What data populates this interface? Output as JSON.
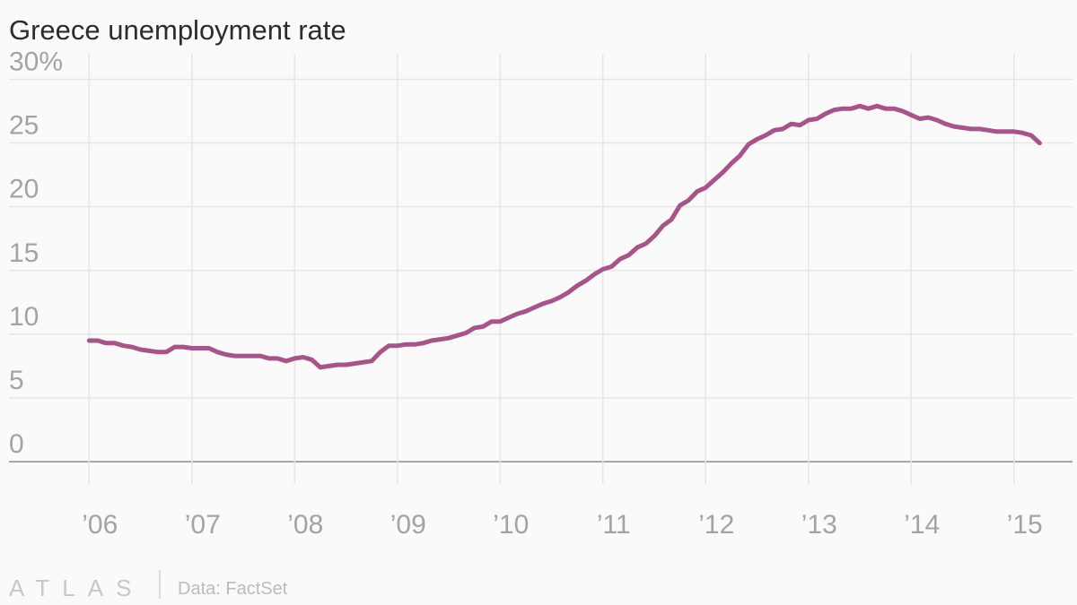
{
  "chart_data": {
    "type": "line",
    "title": "Greece unemployment rate",
    "source": "Data: FactSet",
    "brand": "ATLAS",
    "x": [
      2006,
      2006.083,
      2006.167,
      2006.25,
      2006.333,
      2006.417,
      2006.5,
      2006.583,
      2006.667,
      2006.75,
      2006.833,
      2006.917,
      2007,
      2007.083,
      2007.167,
      2007.25,
      2007.333,
      2007.417,
      2007.5,
      2007.583,
      2007.667,
      2007.75,
      2007.833,
      2007.917,
      2008,
      2008.083,
      2008.167,
      2008.25,
      2008.333,
      2008.417,
      2008.5,
      2008.583,
      2008.667,
      2008.75,
      2008.833,
      2008.917,
      2009,
      2009.083,
      2009.167,
      2009.25,
      2009.333,
      2009.417,
      2009.5,
      2009.583,
      2009.667,
      2009.75,
      2009.833,
      2009.917,
      2010,
      2010.083,
      2010.167,
      2010.25,
      2010.333,
      2010.417,
      2010.5,
      2010.583,
      2010.667,
      2010.75,
      2010.833,
      2010.917,
      2011,
      2011.083,
      2011.167,
      2011.25,
      2011.333,
      2011.417,
      2011.5,
      2011.583,
      2011.667,
      2011.75,
      2011.833,
      2011.917,
      2012,
      2012.083,
      2012.167,
      2012.25,
      2012.333,
      2012.417,
      2012.5,
      2012.583,
      2012.667,
      2012.75,
      2012.833,
      2012.917,
      2013,
      2013.083,
      2013.167,
      2013.25,
      2013.333,
      2013.417,
      2013.5,
      2013.583,
      2013.667,
      2013.75,
      2013.833,
      2013.917,
      2014,
      2014.083,
      2014.167,
      2014.25,
      2014.333,
      2014.417,
      2014.5,
      2014.583,
      2014.667,
      2014.75,
      2014.833,
      2014.917,
      2015,
      2015.083,
      2015.167,
      2015.25
    ],
    "series": [
      {
        "name": "Unemployment rate",
        "color": "#a8538a",
        "values": [
          9.5,
          9.5,
          9.3,
          9.3,
          9.1,
          9.0,
          8.8,
          8.7,
          8.6,
          8.6,
          9.0,
          9.0,
          8.9,
          8.9,
          8.9,
          8.6,
          8.4,
          8.3,
          8.3,
          8.3,
          8.3,
          8.1,
          8.1,
          7.9,
          8.1,
          8.2,
          8.0,
          7.4,
          7.5,
          7.6,
          7.6,
          7.7,
          7.8,
          7.9,
          8.6,
          9.1,
          9.1,
          9.2,
          9.2,
          9.3,
          9.5,
          9.6,
          9.7,
          9.9,
          10.1,
          10.5,
          10.6,
          11.0,
          11.0,
          11.3,
          11.6,
          11.8,
          12.1,
          12.4,
          12.6,
          12.9,
          13.3,
          13.8,
          14.2,
          14.7,
          15.1,
          15.3,
          15.9,
          16.2,
          16.8,
          17.1,
          17.7,
          18.5,
          19.0,
          20.1,
          20.5,
          21.2,
          21.5,
          22.1,
          22.7,
          23.4,
          24.0,
          24.9,
          25.3,
          25.6,
          26.0,
          26.1,
          26.5,
          26.4,
          26.8,
          26.9,
          27.3,
          27.6,
          27.7,
          27.7,
          27.9,
          27.7,
          27.9,
          27.7,
          27.7,
          27.5,
          27.2,
          26.9,
          27.0,
          26.8,
          26.5,
          26.3,
          26.2,
          26.1,
          26.1,
          26.0,
          25.9,
          25.9,
          25.9,
          25.8,
          25.6,
          25.0
        ]
      }
    ],
    "xlim": [
      2005.22,
      2015.57
    ],
    "xticks": [
      {
        "value": 2006,
        "label": "’06"
      },
      {
        "value": 2007,
        "label": "’07"
      },
      {
        "value": 2008,
        "label": "’08"
      },
      {
        "value": 2009,
        "label": "’09"
      },
      {
        "value": 2010,
        "label": "’10"
      },
      {
        "value": 2011,
        "label": "’11"
      },
      {
        "value": 2012,
        "label": "’12"
      },
      {
        "value": 2013,
        "label": "’13"
      },
      {
        "value": 2014,
        "label": "’14"
      },
      {
        "value": 2015,
        "label": "’15"
      }
    ],
    "ylim": [
      -1.75,
      32
    ],
    "yticks": [
      0,
      5,
      10,
      15,
      20,
      25,
      {
        "value": 30,
        "label": "30%"
      }
    ],
    "grid": true
  }
}
